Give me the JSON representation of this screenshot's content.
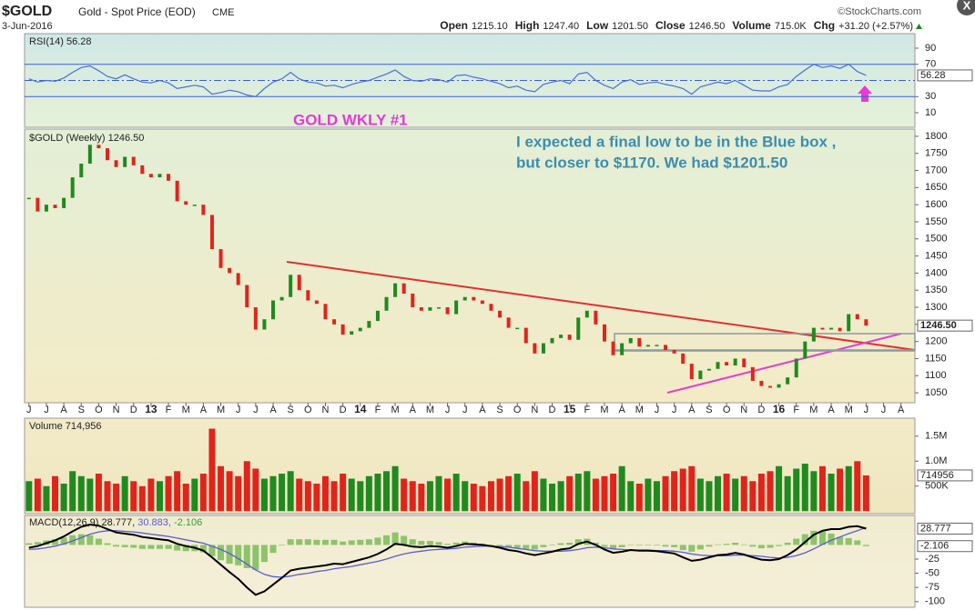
{
  "header": {
    "symbol": "$GOLD",
    "name": "Gold - Spot Price (EOD)",
    "exchange": "CME",
    "date": "3-Jun-2016",
    "source": "©StockCharts.com",
    "quote": [
      {
        "label": "Open",
        "value": "1215.10"
      },
      {
        "label": "High",
        "value": "1247.40"
      },
      {
        "label": "Low",
        "value": "1201.50"
      },
      {
        "label": "Close",
        "value": "1246.50"
      },
      {
        "label": "Volume",
        "value": "715.0K"
      },
      {
        "label": "Chg",
        "value": "+31.20 (+2.57%)"
      }
    ]
  },
  "annotations": {
    "tag": "GOLD WKLY #1",
    "note": [
      "I expected a final low to be in the Blue box ,",
      "but closer to $1170. We had $1201.50"
    ]
  },
  "chart_data": [
    {
      "type": "line",
      "title": "RSI(14) 56.28",
      "color": "#4a6fd6",
      "ylim": [
        -8,
        108
      ],
      "yticks": [
        10,
        30,
        70,
        90
      ],
      "levels": [
        70,
        50,
        30
      ],
      "values": [
        52,
        48,
        50,
        49,
        53,
        60,
        66,
        68,
        62,
        55,
        52,
        57,
        52,
        48,
        47,
        50,
        47,
        40,
        42,
        44,
        42,
        33,
        35,
        38,
        36,
        32,
        30,
        40,
        48,
        52,
        60,
        52,
        48,
        47,
        43,
        44,
        41,
        45,
        48,
        50,
        54,
        58,
        63,
        55,
        50,
        49,
        52,
        51,
        48,
        56,
        57,
        54,
        52,
        49,
        46,
        41,
        43,
        38,
        36,
        45,
        48,
        50,
        46,
        58,
        60,
        50,
        44,
        40,
        48,
        51,
        45,
        47,
        48,
        45,
        43,
        40,
        33,
        42,
        45,
        48,
        46,
        50,
        44,
        38,
        37,
        37,
        42,
        45,
        55,
        63,
        70,
        66,
        68,
        65,
        70,
        61,
        56.28
      ]
    },
    {
      "type": "candlestick",
      "title": "$GOLD (Weekly) 1246.50",
      "up_color": "#1f8a1f",
      "down_color": "#e0241c",
      "last_label": "1246.50",
      "ylim": [
        1021,
        1821
      ],
      "yticks": [
        1050,
        1100,
        1150,
        1200,
        1250,
        1300,
        1350,
        1400,
        1450,
        1500,
        1550,
        1600,
        1650,
        1700,
        1750,
        1800
      ],
      "xlim": [
        -0.5,
        101.6
      ],
      "xticks": [
        {
          "value": 0,
          "label": "J"
        },
        {
          "value": 2,
          "label": "J"
        },
        {
          "value": 4,
          "label": "A"
        },
        {
          "value": 6,
          "label": "S"
        },
        {
          "value": 8,
          "label": "O"
        },
        {
          "value": 10,
          "label": "N"
        },
        {
          "value": 12,
          "label": "D"
        },
        {
          "value": 14,
          "label": "13"
        },
        {
          "value": 16,
          "label": "F"
        },
        {
          "value": 18,
          "label": "M"
        },
        {
          "value": 20,
          "label": "A"
        },
        {
          "value": 22,
          "label": "M"
        },
        {
          "value": 24,
          "label": "J"
        },
        {
          "value": 26,
          "label": "J"
        },
        {
          "value": 28,
          "label": "A"
        },
        {
          "value": 30,
          "label": "S"
        },
        {
          "value": 32,
          "label": "O"
        },
        {
          "value": 34,
          "label": "N"
        },
        {
          "value": 36,
          "label": "D"
        },
        {
          "value": 38,
          "label": "14"
        },
        {
          "value": 40,
          "label": "F"
        },
        {
          "value": 42,
          "label": "M"
        },
        {
          "value": 44,
          "label": "A"
        },
        {
          "value": 46,
          "label": "M"
        },
        {
          "value": 48,
          "label": "J"
        },
        {
          "value": 50,
          "label": "J"
        },
        {
          "value": 52,
          "label": "A"
        },
        {
          "value": 54,
          "label": "S"
        },
        {
          "value": 56,
          "label": "O"
        },
        {
          "value": 58,
          "label": "N"
        },
        {
          "value": 60,
          "label": "D"
        },
        {
          "value": 62,
          "label": "15"
        },
        {
          "value": 64,
          "label": "F"
        },
        {
          "value": 66,
          "label": "M"
        },
        {
          "value": 68,
          "label": "A"
        },
        {
          "value": 70,
          "label": "M"
        },
        {
          "value": 72,
          "label": "J"
        },
        {
          "value": 74,
          "label": "J"
        },
        {
          "value": 76,
          "label": "A"
        },
        {
          "value": 78,
          "label": "S"
        },
        {
          "value": 80,
          "label": "O"
        },
        {
          "value": 82,
          "label": "N"
        },
        {
          "value": 84,
          "label": "D"
        },
        {
          "value": 86,
          "label": "16"
        },
        {
          "value": 88,
          "label": "F"
        },
        {
          "value": 90,
          "label": "M"
        },
        {
          "value": 92,
          "label": "A"
        },
        {
          "value": 94,
          "label": "M"
        },
        {
          "value": 96,
          "label": "J"
        },
        {
          "value": 98,
          "label": "J"
        },
        {
          "value": 100,
          "label": "A"
        }
      ],
      "values": [
        1620,
        1580,
        1600,
        1590,
        1620,
        1680,
        1720,
        1775,
        1765,
        1730,
        1710,
        1740,
        1715,
        1690,
        1680,
        1690,
        1670,
        1610,
        1600,
        1600,
        1570,
        1470,
        1415,
        1400,
        1365,
        1300,
        1235,
        1265,
        1320,
        1330,
        1395,
        1350,
        1320,
        1310,
        1265,
        1250,
        1220,
        1230,
        1240,
        1260,
        1290,
        1330,
        1370,
        1340,
        1300,
        1290,
        1300,
        1300,
        1280,
        1320,
        1330,
        1320,
        1310,
        1290,
        1270,
        1240,
        1240,
        1195,
        1165,
        1195,
        1210,
        1220,
        1205,
        1270,
        1290,
        1250,
        1200,
        1160,
        1195,
        1210,
        1185,
        1190,
        1190,
        1175,
        1165,
        1135,
        1090,
        1115,
        1120,
        1140,
        1130,
        1150,
        1125,
        1085,
        1070,
        1065,
        1075,
        1095,
        1150,
        1200,
        1240,
        1235,
        1240,
        1230,
        1280,
        1265,
        1246.5
      ]
    },
    {
      "type": "bar",
      "title": "Volume 714,956",
      "ylim": [
        -50000,
        1860000
      ],
      "yticks": [
        {
          "value": 500000,
          "label": "500K"
        },
        {
          "value": 1000000,
          "label": "1.0M"
        },
        {
          "value": 1500000,
          "label": "1.5M"
        }
      ],
      "values": [
        600000,
        650000,
        500000,
        700000,
        550000,
        800000,
        700000,
        650000,
        750000,
        600000,
        550000,
        700000,
        600000,
        500000,
        650000,
        600000,
        700000,
        800000,
        550000,
        650000,
        750000,
        1650000,
        900000,
        800000,
        700000,
        1000000,
        850000,
        650000,
        700000,
        750000,
        800000,
        650000,
        600000,
        550000,
        700000,
        600000,
        750000,
        650000,
        600000,
        700000,
        750000,
        800000,
        900000,
        650000,
        600000,
        550000,
        600000,
        700000,
        650000,
        750000,
        600000,
        550000,
        500000,
        600000,
        650000,
        700000,
        750000,
        600000,
        800000,
        650000,
        550000,
        600000,
        700000,
        750000,
        800000,
        650000,
        700000,
        750000,
        900000,
        600000,
        550000,
        650000,
        600000,
        700000,
        800000,
        850000,
        900000,
        650000,
        600000,
        700000,
        750000,
        650000,
        700000,
        600000,
        750000,
        800000,
        900000,
        700000,
        850000,
        950000,
        800000,
        900000,
        750000,
        850000,
        900000,
        1000000,
        714956
      ]
    },
    {
      "type": "macd",
      "legend": [
        "MACD(12,26,9) 28.777,",
        "30.883,",
        "-2.106"
      ],
      "histogram_color": "#8cc46a",
      "histogram_last": -2.106,
      "ylim": [
        -110,
        52
      ],
      "yticks": [
        -25,
        -50,
        -75,
        -100
      ],
      "series": [
        {
          "color": "#000000",
          "values": [
            -5,
            -2,
            3,
            8,
            15,
            24,
            32,
            36,
            34,
            28,
            22,
            20,
            18,
            14,
            12,
            10,
            8,
            2,
            -2,
            -5,
            -10,
            -22,
            -35,
            -48,
            -60,
            -75,
            -88,
            -82,
            -70,
            -58,
            -45,
            -42,
            -40,
            -38,
            -36,
            -33,
            -34,
            -30,
            -26,
            -22,
            -16,
            -8,
            2,
            0,
            -3,
            -4,
            -2,
            -3,
            -5,
            -2,
            2,
            1,
            0,
            -2,
            -5,
            -9,
            -11,
            -15,
            -18,
            -15,
            -12,
            -8,
            -6,
            2,
            6,
            0,
            -8,
            -14,
            -12,
            -9,
            -10,
            -10,
            -11,
            -13,
            -15,
            -22,
            -28,
            -26,
            -22,
            -18,
            -17,
            -14,
            -17,
            -22,
            -26,
            -27,
            -25,
            -18,
            -8,
            5,
            18,
            25,
            28,
            28,
            32,
            33,
            28.777
          ]
        },
        {
          "color": "#5a5ad6",
          "values": [
            -8,
            -7,
            -5,
            -2,
            2,
            7,
            13,
            19,
            23,
            25,
            25,
            24,
            23,
            21,
            19,
            17,
            15,
            12,
            9,
            6,
            3,
            -2,
            -8,
            -15,
            -24,
            -34,
            -44,
            -52,
            -56,
            -57,
            -55,
            -52,
            -50,
            -47,
            -45,
            -42,
            -40,
            -38,
            -35,
            -32,
            -29,
            -25,
            -20,
            -16,
            -13,
            -11,
            -9,
            -8,
            -7,
            -6,
            -4,
            -3,
            -2,
            -2,
            -3,
            -4,
            -6,
            -8,
            -10,
            -11,
            -11,
            -11,
            -10,
            -8,
            -5,
            -4,
            -5,
            -7,
            -8,
            -9,
            -9,
            -9,
            -10,
            -10,
            -11,
            -13,
            -16,
            -18,
            -19,
            -19,
            -19,
            -18,
            -18,
            -19,
            -20,
            -22,
            -23,
            -22,
            -19,
            -14,
            -7,
            1,
            8,
            14,
            20,
            25,
            30.883
          ]
        }
      ]
    }
  ]
}
